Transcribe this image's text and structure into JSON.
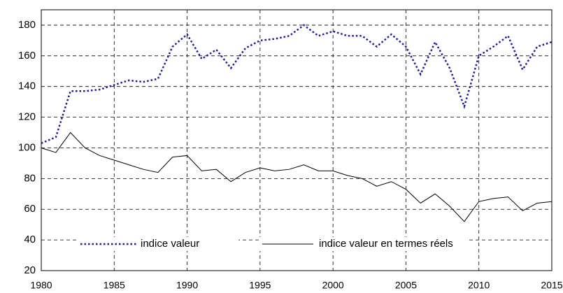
{
  "chart_data": {
    "type": "line",
    "x": [
      1980,
      1981,
      1982,
      1983,
      1984,
      1985,
      1986,
      1987,
      1988,
      1989,
      1990,
      1991,
      1992,
      1993,
      1994,
      1995,
      1996,
      1997,
      1998,
      1999,
      2000,
      2001,
      2002,
      2003,
      2004,
      2005,
      2006,
      2007,
      2008,
      2009,
      2010,
      2011,
      2012,
      2013,
      2014,
      2015
    ],
    "series": [
      {
        "name": "indice valeur",
        "color": "#1c1c9c",
        "style": "dotted",
        "values": [
          103,
          107,
          137,
          137,
          138,
          141,
          144,
          143,
          145,
          166,
          174,
          158,
          164,
          152,
          165,
          170,
          171,
          173,
          180,
          173,
          176,
          173,
          173,
          166,
          174,
          166,
          148,
          169,
          152,
          127,
          160,
          166,
          173,
          151,
          166,
          169
        ]
      },
      {
        "name": "indice valeur en termes réels",
        "color": "#000000",
        "style": "solid",
        "values": [
          100,
          97,
          110,
          100,
          95,
          92,
          89,
          86,
          84,
          94,
          95,
          85,
          86,
          78,
          84,
          87,
          85,
          86,
          89,
          85,
          85,
          82,
          80,
          75,
          78,
          73,
          64,
          70,
          62,
          52,
          65,
          67,
          68,
          59,
          64,
          65
        ]
      }
    ],
    "xlim": [
      1980,
      2015
    ],
    "xticks": [
      1980,
      1985,
      1990,
      1995,
      2000,
      2005,
      2010,
      2015
    ],
    "ylim": [
      20,
      190
    ],
    "yticks": [
      20,
      40,
      60,
      80,
      100,
      120,
      140,
      160,
      180
    ],
    "grid": true,
    "legend": "bottom"
  }
}
